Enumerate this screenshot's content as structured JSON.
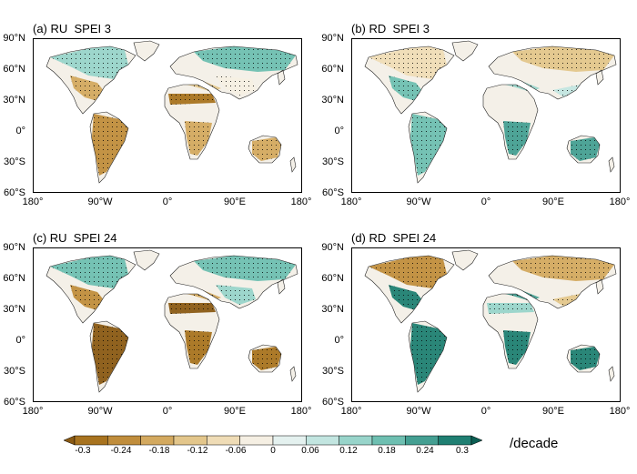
{
  "panels": [
    {
      "title": "(a) RU  SPEI 3"
    },
    {
      "title": "(b) RD  SPEI 3"
    },
    {
      "title": "(c) RU  SPEI 24"
    },
    {
      "title": "(d) RD  SPEI 24"
    }
  ],
  "lat_labels": [
    "90°N",
    "60°N",
    "30°N",
    "0°",
    "30°S",
    "60°S"
  ],
  "lon_labels": [
    "180°",
    "90°W",
    "0°",
    "90°E",
    "180°"
  ],
  "colorbar": {
    "tick_labels": [
      "-0.3",
      "-0.24",
      "-0.18",
      "-0.12",
      "-0.06",
      "0",
      "0.06",
      "0.12",
      "0.18",
      "0.24",
      "0.3"
    ],
    "unit": "/decade",
    "colors": [
      "#8a5a14",
      "#a8731f",
      "#c08d3c",
      "#d3a95f",
      "#e3c68b",
      "#efdcb6",
      "#f5efe3",
      "#e4f1ef",
      "#c2e5e0",
      "#98d4ca",
      "#6ebfb1",
      "#449f92",
      "#1f7f72",
      "#0b5e53"
    ]
  },
  "legend_colors": {
    "land_neutral": "#f4f0e8",
    "brown": "#b88432",
    "green": "#3aa08f",
    "stipple": "#000000"
  }
}
